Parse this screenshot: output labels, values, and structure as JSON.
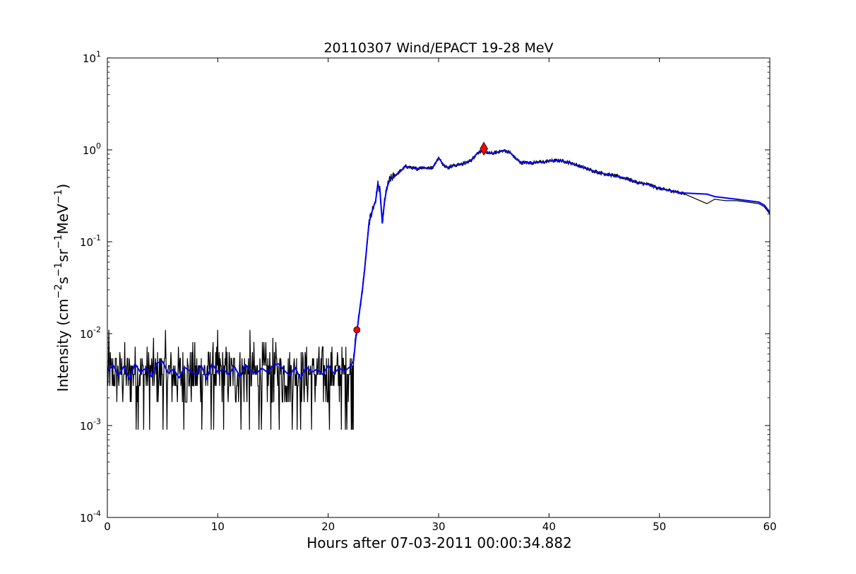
{
  "chart_data": {
    "type": "line",
    "title": "20110307 Wind/EPACT 19-28 MeV",
    "xlabel": "Hours after 07-03-2011 00:00:34.882",
    "ylabel_parts": [
      "Intensity (cm",
      "−2",
      "s",
      "−1",
      "sr",
      "−1",
      "MeV",
      "−1",
      ")"
    ],
    "xlim": [
      0,
      60
    ],
    "ylim": [
      0.0001,
      10
    ],
    "yscale": "log",
    "x_ticks": [
      0,
      10,
      20,
      30,
      40,
      50,
      60
    ],
    "x_tick_labels": [
      "0",
      "10",
      "20",
      "30",
      "40",
      "50",
      "60"
    ],
    "y_ticks": [
      0.0001,
      0.001,
      0.01,
      0.1,
      1,
      10
    ],
    "y_tick_labels": [
      {
        "base": "10",
        "exp": "-4"
      },
      {
        "base": "10",
        "exp": "-3"
      },
      {
        "base": "10",
        "exp": "-2"
      },
      {
        "base": "10",
        "exp": "-1"
      },
      {
        "base": "10",
        "exp": "0"
      },
      {
        "base": "10",
        "exp": "1"
      }
    ],
    "grid": false,
    "colors": {
      "raw": "#000000",
      "smoothed": "#0000ff",
      "marker": "#ff0000"
    },
    "series": [
      {
        "role": "raw",
        "color": "#000000",
        "background_levels": [
          0.0009,
          0.0018,
          0.0027,
          0.0036,
          0.0045,
          0.0054,
          0.0063,
          0.0072,
          0.0081,
          0.009,
          0.011
        ],
        "background_range": [
          0,
          22.3
        ],
        "x": [
          22.3,
          22.5,
          22.7,
          22.9,
          23.1,
          23.3,
          23.5,
          23.7,
          23.9,
          24.1,
          24.3,
          24.5,
          24.7,
          24.9,
          25.1,
          25.3,
          25.6,
          26.0,
          26.5,
          27.0,
          27.5,
          28.0,
          28.5,
          29.0,
          29.5,
          30.0,
          30.4,
          30.8,
          31.2,
          31.6,
          32.0,
          32.5,
          33.0,
          33.5,
          34.0,
          34.5,
          35.0,
          35.5,
          36.0,
          36.5,
          37.0,
          37.5,
          38.0,
          38.5,
          39.0,
          39.5,
          40.0,
          40.5,
          41.0,
          41.5,
          42.0,
          43.0,
          44.0,
          45.0,
          46.0,
          47.0,
          48.0,
          49.0,
          50.0,
          51.0,
          52.0,
          52.3,
          54.3,
          55.0,
          56.0,
          57.0,
          58.0,
          59.0,
          59.5,
          60.0
        ],
        "y": [
          0.006,
          0.009,
          0.013,
          0.02,
          0.03,
          0.05,
          0.09,
          0.16,
          0.2,
          0.24,
          0.28,
          0.43,
          0.35,
          0.16,
          0.27,
          0.38,
          0.48,
          0.52,
          0.58,
          0.66,
          0.64,
          0.62,
          0.65,
          0.63,
          0.65,
          0.82,
          0.7,
          0.64,
          0.67,
          0.68,
          0.7,
          0.72,
          0.78,
          0.92,
          1.0,
          0.92,
          0.92,
          0.96,
          0.98,
          0.93,
          0.8,
          0.72,
          0.73,
          0.72,
          0.74,
          0.73,
          0.76,
          0.76,
          0.77,
          0.74,
          0.72,
          0.65,
          0.59,
          0.55,
          0.52,
          0.49,
          0.44,
          0.42,
          0.38,
          0.36,
          0.34,
          0.33,
          0.26,
          0.29,
          0.28,
          0.28,
          0.27,
          0.26,
          0.24,
          0.2
        ]
      },
      {
        "role": "smoothed",
        "color": "#0000ff",
        "x": [
          0,
          0.5,
          1.0,
          1.5,
          2.0,
          2.5,
          3.0,
          3.5,
          4.0,
          4.5,
          5.0,
          5.5,
          6.0,
          6.5,
          7.0,
          7.5,
          8.0,
          8.5,
          9.0,
          9.5,
          10.0,
          10.5,
          11.0,
          11.5,
          12.0,
          12.5,
          13.0,
          13.5,
          14.0,
          14.5,
          15.0,
          15.5,
          16.0,
          16.5,
          17.0,
          17.5,
          18.0,
          18.5,
          19.0,
          19.5,
          20.0,
          20.5,
          21.0,
          21.5,
          22.0,
          22.3,
          22.5,
          22.7,
          22.9,
          23.1,
          23.3,
          23.5,
          23.7,
          23.9,
          24.1,
          24.3,
          24.5,
          24.7,
          24.9,
          25.1,
          25.3,
          25.6,
          26.0,
          26.5,
          27.0,
          27.5,
          28.0,
          28.5,
          29.0,
          29.5,
          30.0,
          30.4,
          30.8,
          31.2,
          31.6,
          32.0,
          32.5,
          33.0,
          33.5,
          34.0,
          34.5,
          35.0,
          35.5,
          36.0,
          36.5,
          37.0,
          37.5,
          38.0,
          38.5,
          39.0,
          39.5,
          40.0,
          40.5,
          41.0,
          41.5,
          42.0,
          43.0,
          44.0,
          45.0,
          46.0,
          47.0,
          48.0,
          49.0,
          50.0,
          51.0,
          52.0,
          54.3,
          55.0,
          56.0,
          57.0,
          58.0,
          59.0,
          59.5,
          60.0
        ],
        "y": [
          0.0038,
          0.0046,
          0.0035,
          0.0044,
          0.0032,
          0.0047,
          0.0038,
          0.0042,
          0.0034,
          0.0048,
          0.005,
          0.0037,
          0.0041,
          0.0033,
          0.0043,
          0.0039,
          0.0036,
          0.0045,
          0.0032,
          0.0047,
          0.0038,
          0.0041,
          0.0036,
          0.0044,
          0.0034,
          0.0046,
          0.0039,
          0.0037,
          0.0042,
          0.0038,
          0.0045,
          0.0047,
          0.004,
          0.0035,
          0.0043,
          0.0032,
          0.0044,
          0.0038,
          0.0041,
          0.0036,
          0.0045,
          0.0037,
          0.0042,
          0.0039,
          0.0044,
          0.005,
          0.009,
          0.013,
          0.02,
          0.03,
          0.05,
          0.09,
          0.16,
          0.2,
          0.24,
          0.28,
          0.43,
          0.35,
          0.16,
          0.27,
          0.38,
          0.48,
          0.52,
          0.58,
          0.66,
          0.64,
          0.62,
          0.65,
          0.63,
          0.65,
          0.82,
          0.7,
          0.64,
          0.67,
          0.68,
          0.7,
          0.72,
          0.78,
          0.92,
          1.0,
          0.92,
          0.92,
          0.96,
          0.98,
          0.93,
          0.8,
          0.72,
          0.73,
          0.72,
          0.74,
          0.73,
          0.76,
          0.76,
          0.77,
          0.74,
          0.72,
          0.65,
          0.59,
          0.55,
          0.52,
          0.49,
          0.44,
          0.42,
          0.38,
          0.36,
          0.34,
          0.33,
          0.31,
          0.3,
          0.29,
          0.28,
          0.27,
          0.25,
          0.21
        ]
      }
    ],
    "markers": [
      {
        "name": "onset",
        "shape": "circle",
        "x": 22.6,
        "y": 0.011,
        "color": "#ff0000"
      },
      {
        "name": "peak",
        "shape": "diamond",
        "x": 34.1,
        "y": 1.03,
        "color": "#ff0000"
      }
    ]
  }
}
